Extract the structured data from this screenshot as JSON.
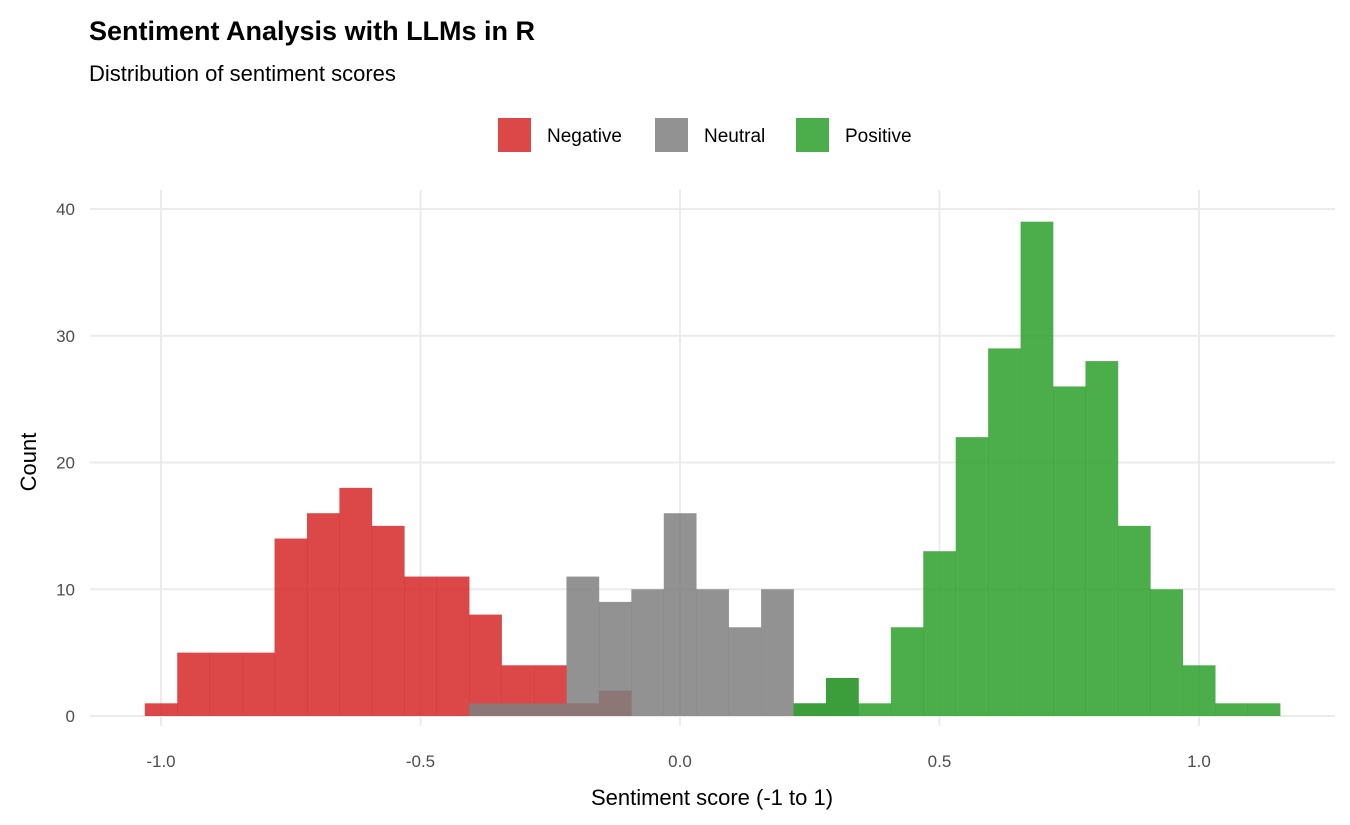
{
  "chart_data": {
    "type": "bar",
    "subtype": "histogram",
    "title": "Sentiment Analysis with LLMs in R",
    "subtitle": "Distribution of sentiment scores",
    "xlabel": "Sentiment score (-1 to 1)",
    "ylabel": "Count",
    "xlim": [
      -1.12,
      1.25
    ],
    "ylim": [
      0,
      40
    ],
    "x_ticks": [
      -1.0,
      -0.5,
      0.0,
      0.5,
      1.0
    ],
    "x_tick_labels": [
      "-1.0",
      "-0.5",
      "0.0",
      "0.5",
      "1.0"
    ],
    "y_ticks": [
      0,
      10,
      20,
      30,
      40
    ],
    "y_tick_labels": [
      "0",
      "10",
      "20",
      "30",
      "40"
    ],
    "grid": true,
    "legend_position": "top",
    "binwidth": 0.0625,
    "bin_centers_start": -1.0,
    "series": [
      {
        "name": "Negative",
        "color": "#d62728",
        "bins": [
          [
            0,
            1
          ],
          [
            1,
            5
          ],
          [
            2,
            5
          ],
          [
            3,
            5
          ],
          [
            4,
            14
          ],
          [
            5,
            16
          ],
          [
            6,
            18
          ],
          [
            7,
            15
          ],
          [
            8,
            11
          ],
          [
            9,
            11
          ],
          [
            10,
            8
          ],
          [
            11,
            4
          ],
          [
            12,
            4
          ],
          [
            13,
            1
          ],
          [
            14,
            2
          ]
        ]
      },
      {
        "name": "Neutral",
        "color": "#7f7f7f",
        "bins": [
          [
            10,
            1
          ],
          [
            11,
            1
          ],
          [
            12,
            1
          ],
          [
            13,
            11
          ],
          [
            14,
            9
          ],
          [
            15,
            10
          ],
          [
            16,
            16
          ],
          [
            17,
            10
          ],
          [
            18,
            7
          ],
          [
            19,
            10
          ],
          [
            20,
            1
          ],
          [
            21,
            3
          ]
        ]
      },
      {
        "name": "Positive",
        "color": "#2ca02c",
        "bins": [
          [
            20,
            1
          ],
          [
            21,
            3
          ],
          [
            22,
            1
          ],
          [
            23,
            7
          ],
          [
            24,
            13
          ],
          [
            25,
            22
          ],
          [
            26,
            29
          ],
          [
            27,
            39
          ],
          [
            28,
            26
          ],
          [
            29,
            28
          ],
          [
            30,
            15
          ],
          [
            31,
            10
          ],
          [
            32,
            4
          ],
          [
            33,
            1
          ],
          [
            34,
            1
          ]
        ]
      }
    ]
  }
}
